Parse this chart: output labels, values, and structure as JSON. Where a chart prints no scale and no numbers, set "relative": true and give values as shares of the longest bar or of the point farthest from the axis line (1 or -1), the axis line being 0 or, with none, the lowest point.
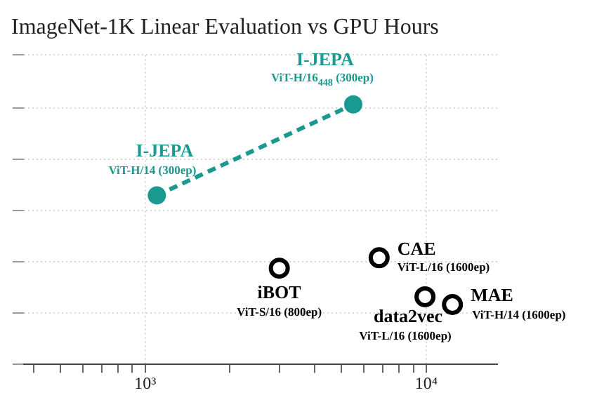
{
  "chart_data": {
    "type": "scatter",
    "title": "ImageNet-1K Linear Evaluation vs GPU Hours",
    "relative": true,
    "log": "x",
    "grid": true,
    "xlim": [
      370,
      17900
    ],
    "xticks": [
      {
        "value": 400,
        "label": null
      },
      {
        "value": 500,
        "label": null
      },
      {
        "value": 600,
        "label": null
      },
      {
        "value": 700,
        "label": null
      },
      {
        "value": 800,
        "label": null
      },
      {
        "value": 900,
        "label": null
      },
      {
        "value": 1000,
        "label": "10³"
      },
      {
        "value": 2000,
        "label": null
      },
      {
        "value": 3000,
        "label": null
      },
      {
        "value": 4000,
        "label": null
      },
      {
        "value": 5000,
        "label": null
      },
      {
        "value": 6000,
        "label": null
      },
      {
        "value": 7000,
        "label": null
      },
      {
        "value": 8000,
        "label": null
      },
      {
        "value": 9000,
        "label": null
      },
      {
        "value": 10000,
        "label": "10⁴"
      }
    ],
    "series": [
      {
        "type": "line",
        "color": "#1a9990",
        "marker": "circle",
        "line_style": "dashed",
        "x": [
          1100,
          5500
        ],
        "values": [
          0.65,
          1
        ]
      },
      {
        "type": "scatter",
        "color": "#000000",
        "marker": "circle",
        "x": [
          3000,
          6800,
          9900,
          12400
        ],
        "values": [
          0.37,
          0.41,
          0.26,
          0.23
        ]
      }
    ],
    "annotations": [
      {
        "text": "I-JEPA",
        "x": 1100,
        "y": 0.65
      },
      "ViT-H/14 (300ep)",
      {
        "text": "I-JEPA",
        "x": 5500,
        "y": 1
      },
      "ViT-H/16$_{448}$ (300ep)",
      {
        "text": "iBOT",
        "x": 3000,
        "y": 0.37
      },
      "ViT-S/16 (800ep)",
      {
        "text": "CAE",
        "x": 6800,
        "y": 0.41
      },
      "ViT-L/16 (1600ep)",
      {
        "text": "data2vec",
        "x": 9900,
        "y": 0.26
      },
      "ViT-L/16 (1600ep)",
      {
        "text": "MAE",
        "x": 12400,
        "y": 0.23
      },
      "ViT-H/14 (1600ep)"
    ]
  }
}
